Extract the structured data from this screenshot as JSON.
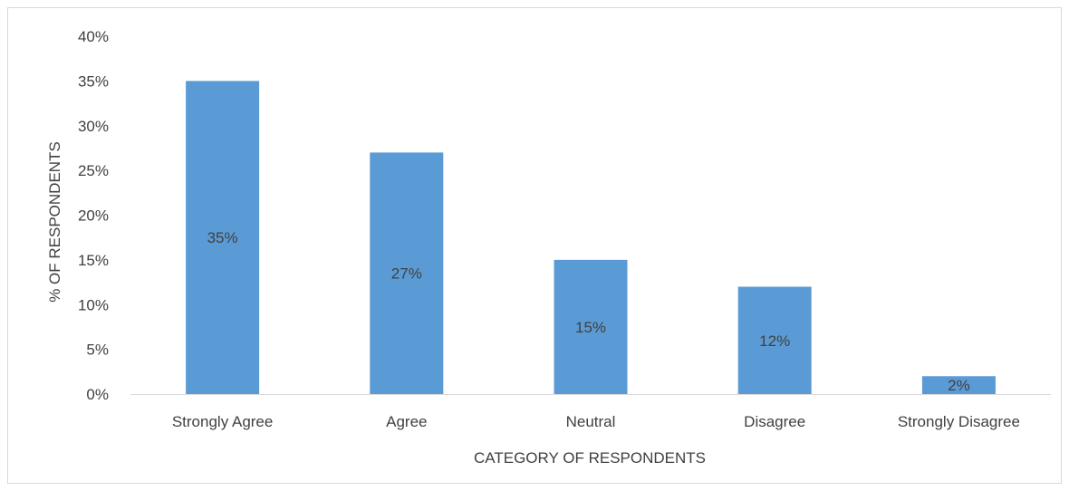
{
  "chart_data": {
    "type": "bar",
    "categories": [
      "Strongly Agree",
      "Agree",
      "Neutral",
      "Disagree",
      "Strongly Disagree"
    ],
    "values": [
      35,
      27,
      15,
      12,
      2
    ],
    "data_labels": [
      "35%",
      "27%",
      "15%",
      "12%",
      "2%"
    ],
    "title": "",
    "xlabel": "CATEGORY OF RESPONDENTS",
    "ylabel": "% OF RESPONDENTS",
    "ylim": [
      0,
      40
    ],
    "y_ticks": [
      0,
      5,
      10,
      15,
      20,
      25,
      30,
      35,
      40
    ],
    "y_tick_labels": [
      "0%",
      "5%",
      "10%",
      "15%",
      "20%",
      "25%",
      "30%",
      "35%",
      "40%"
    ],
    "grid": false,
    "legend": "none",
    "bar_color": "#5b9bd5",
    "axis_color": "#d9d9d9",
    "text_color": "#404040"
  }
}
